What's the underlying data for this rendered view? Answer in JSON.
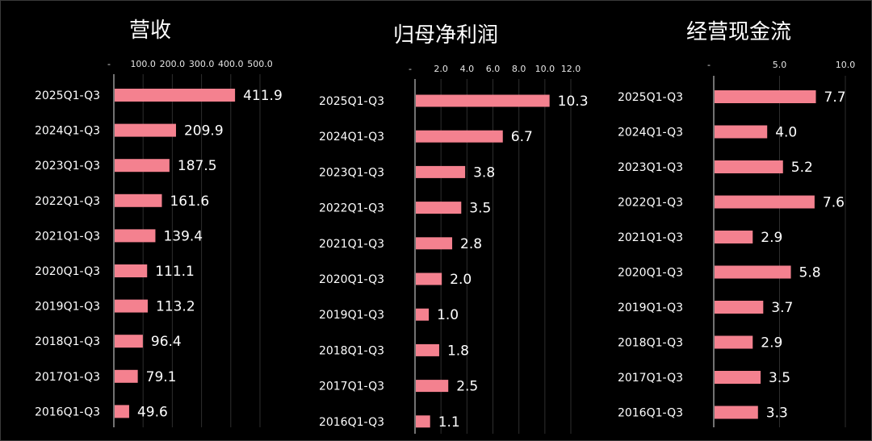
{
  "colors": {
    "bar": "#f4818f",
    "background": "#000000",
    "text": "#ffffff"
  },
  "chart_data": [
    {
      "type": "bar",
      "orientation": "horizontal",
      "title": "营收",
      "categories": [
        "2025Q1-Q3",
        "2024Q1-Q3",
        "2023Q1-Q3",
        "2022Q1-Q3",
        "2021Q1-Q3",
        "2020Q1-Q3",
        "2019Q1-Q3",
        "2018Q1-Q3",
        "2017Q1-Q3",
        "2016Q1-Q3"
      ],
      "values": [
        411.9,
        209.9,
        187.5,
        161.6,
        139.4,
        111.1,
        113.2,
        96.4,
        79.1,
        49.6
      ],
      "value_labels": [
        "411.9",
        "209.9",
        "187.5",
        "161.6",
        "139.4",
        "111.1",
        "113.2",
        "96.4",
        "79.1",
        "49.6"
      ],
      "xlim": [
        0,
        500
      ],
      "ticks": [
        0,
        100,
        200,
        300,
        400,
        500
      ],
      "tick_labels": [
        "-",
        "100.0",
        "200.0",
        "300.0",
        "400.0",
        "500.0"
      ],
      "grid": true
    },
    {
      "type": "bar",
      "orientation": "horizontal",
      "title": "归母净利润",
      "categories": [
        "2025Q1-Q3",
        "2024Q1-Q3",
        "2023Q1-Q3",
        "2022Q1-Q3",
        "2021Q1-Q3",
        "2020Q1-Q3",
        "2019Q1-Q3",
        "2018Q1-Q3",
        "2017Q1-Q3",
        "2016Q1-Q3"
      ],
      "values": [
        10.3,
        6.7,
        3.8,
        3.5,
        2.8,
        2.0,
        1.0,
        1.8,
        2.5,
        1.1
      ],
      "value_labels": [
        "10.3",
        "6.7",
        "3.8",
        "3.5",
        "2.8",
        "2.0",
        "1.0",
        "1.8",
        "2.5",
        "1.1"
      ],
      "xlim": [
        0,
        12
      ],
      "ticks": [
        0,
        2,
        4,
        6,
        8,
        10,
        12
      ],
      "tick_labels": [
        "-",
        "2.0",
        "4.0",
        "6.0",
        "8.0",
        "10.0",
        "12.0"
      ],
      "grid": true
    },
    {
      "type": "bar",
      "orientation": "horizontal",
      "title": "经营现金流",
      "categories": [
        "2025Q1-Q3",
        "2024Q1-Q3",
        "2023Q1-Q3",
        "2022Q1-Q3",
        "2021Q1-Q3",
        "2020Q1-Q3",
        "2019Q1-Q3",
        "2018Q1-Q3",
        "2017Q1-Q3",
        "2016Q1-Q3"
      ],
      "values": [
        7.7,
        4.0,
        5.2,
        7.6,
        2.9,
        5.8,
        3.7,
        2.9,
        3.5,
        3.3
      ],
      "value_labels": [
        "7.7",
        "4.0",
        "5.2",
        "7.6",
        "2.9",
        "5.8",
        "3.7",
        "2.9",
        "3.5",
        "3.3"
      ],
      "xlim": [
        0,
        10
      ],
      "ticks": [
        0,
        5,
        10
      ],
      "tick_labels": [
        "-",
        "5.0",
        "10.0"
      ],
      "grid": true
    }
  ]
}
